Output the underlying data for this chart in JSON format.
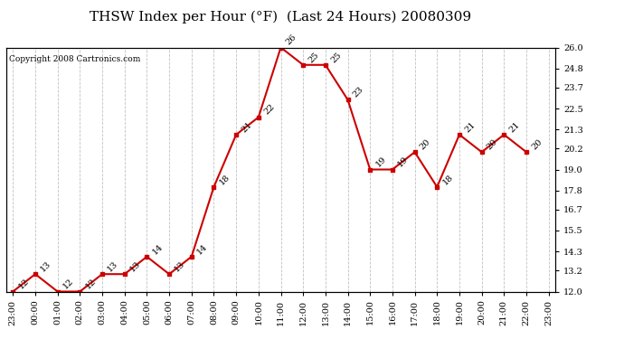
{
  "title": "THSW Index per Hour (°F)  (Last 24 Hours) 20080309",
  "copyright": "Copyright 2008 Cartronics.com",
  "x_labels": [
    "23:00",
    "00:00",
    "01:00",
    "02:00",
    "03:00",
    "04:00",
    "05:00",
    "06:00",
    "07:00",
    "08:00",
    "09:00",
    "10:00",
    "11:00",
    "12:00",
    "13:00",
    "14:00",
    "15:00",
    "16:00",
    "17:00",
    "18:00",
    "19:00",
    "20:00",
    "21:00",
    "22:00",
    "23:00"
  ],
  "y_values": [
    12,
    13,
    12,
    12,
    13,
    13,
    14,
    13,
    14,
    18,
    21,
    22,
    26,
    25,
    25,
    23,
    19,
    19,
    20,
    18,
    21,
    20,
    21,
    20
  ],
  "y_ticks": [
    12.0,
    13.2,
    14.3,
    15.5,
    16.7,
    17.8,
    19.0,
    20.2,
    21.3,
    22.5,
    23.7,
    24.8,
    26.0
  ],
  "y_tick_labels": [
    "12.0",
    "13.2",
    "14.3",
    "15.5",
    "16.7",
    "17.8",
    "19.0",
    "20.2",
    "21.3",
    "22.5",
    "23.7",
    "24.8",
    "26.0"
  ],
  "y_min": 12.0,
  "y_max": 26.0,
  "line_color": "#cc0000",
  "marker_color": "#cc0000",
  "background_color": "#ffffff",
  "grid_color": "#c0c0c0",
  "title_fontsize": 11,
  "tick_fontsize": 7,
  "annot_fontsize": 7,
  "copyright_fontsize": 6.5
}
